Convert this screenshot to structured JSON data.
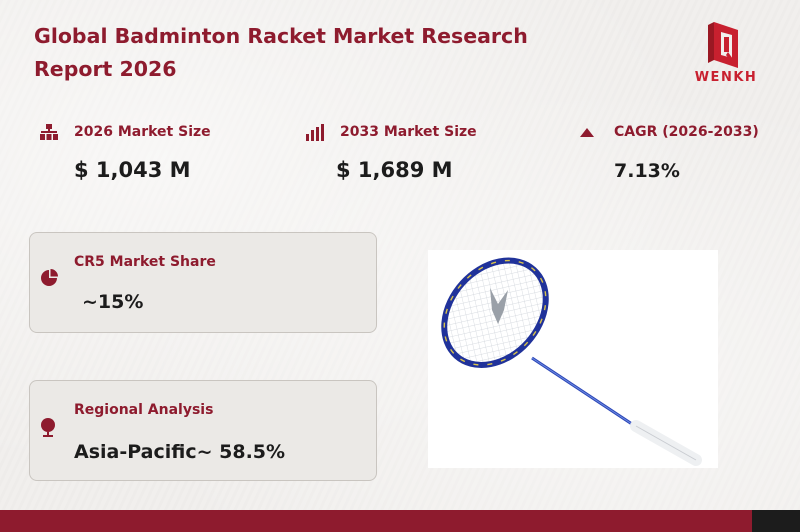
{
  "header": {
    "title": "Global Badminton Racket Market Research Report 2026",
    "logo_text": "WENKH"
  },
  "stats": [
    {
      "label": "2026 Market Size",
      "value": "$ 1,043 M",
      "icon": "hierarchy-icon"
    },
    {
      "label": "2033 Market Size",
      "value": "$ 1,689 M",
      "icon": "bar-chart-icon"
    },
    {
      "label": "CAGR (2026-2033)",
      "value": "7.13%",
      "icon": "triangle-up-icon"
    }
  ],
  "cards": [
    {
      "label": "CR5 Market Share",
      "value": "~15%",
      "icon": "pie-chart-icon"
    },
    {
      "label": "Regional Analysis",
      "value": "Asia-Pacific~ 58.5%",
      "icon": "globe-icon"
    }
  ],
  "image": {
    "subject": "badminton-racket"
  },
  "colors": {
    "accent": "#8e1b2e",
    "logo": "#c8202f",
    "text": "#1c1c1c",
    "footer_dark": "#1c1c1c"
  }
}
